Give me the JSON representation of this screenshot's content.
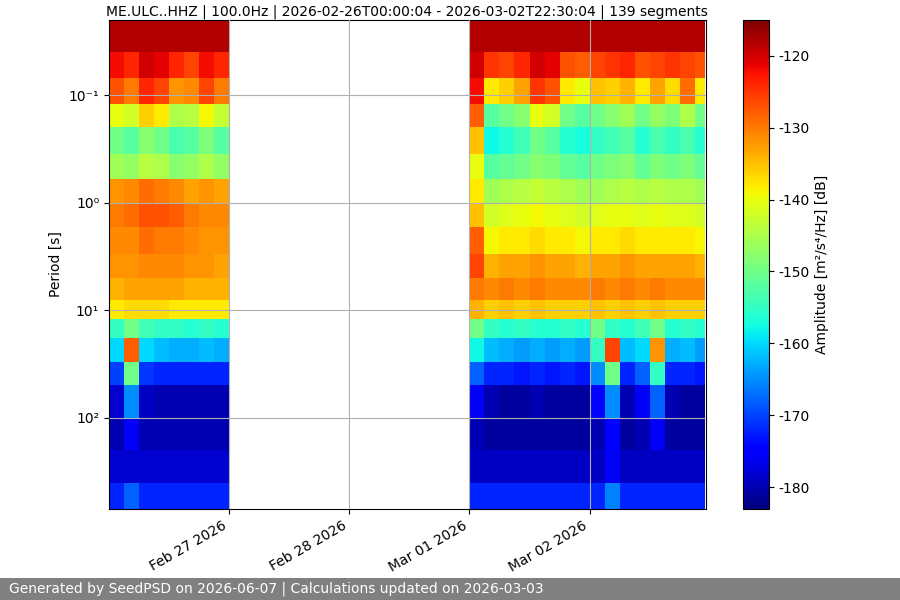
{
  "chart_data": {
    "type": "heatmap",
    "title": "ME.ULC..HHZ | 100.0Hz | 2026-02-26T00:00:04 - 2026-03-02T22:30:04 | 139 segments",
    "y_label": "Period [s]",
    "footer": "Generated by SeedPSD on 2026-06-07 | Calculations updated on 2026-03-03",
    "log": "y",
    "grid": true,
    "xlim": [
      "2026-02-26T00:00",
      "2026-03-02T23:10"
    ],
    "ylim": [
      700,
      0.02
    ],
    "xticks": [
      {
        "value": "2026-02-27T00:00",
        "label": "Feb 27 2026"
      },
      {
        "value": "2026-02-28T00:00",
        "label": "Feb 28 2026"
      },
      {
        "value": "2026-03-01T00:00",
        "label": "Mar 01 2026"
      },
      {
        "value": "2026-03-02T00:00",
        "label": "Mar 02 2026"
      }
    ],
    "yticks": [
      {
        "value": 0.1,
        "label": "10⁻¹"
      },
      {
        "value": 1,
        "label": "10⁰"
      },
      {
        "value": 10,
        "label": "10¹"
      },
      {
        "value": 100,
        "label": "10²"
      }
    ],
    "x_edges": [
      "2026-02-26T00:00",
      "2026-02-26T03:00",
      "2026-02-26T06:00",
      "2026-02-26T09:00",
      "2026-02-26T12:00",
      "2026-02-26T15:00",
      "2026-02-26T18:00",
      "2026-02-26T21:00",
      "2026-02-27T00:00",
      "2026-03-01T00:00",
      "2026-03-01T03:00",
      "2026-03-01T06:00",
      "2026-03-01T09:00",
      "2026-03-01T12:00",
      "2026-03-01T15:00",
      "2026-03-01T18:00",
      "2026-03-01T21:00",
      "2026-03-02T00:00",
      "2026-03-02T03:00",
      "2026-03-02T06:00",
      "2026-03-02T09:00",
      "2026-03-02T12:00",
      "2026-03-02T15:00",
      "2026-03-02T18:00",
      "2026-03-02T21:00",
      "2026-03-02T23:00"
    ],
    "y_edges": [
      0.02,
      0.04,
      0.07,
      0.12,
      0.2,
      0.35,
      0.6,
      1,
      1.7,
      3,
      5,
      8,
      12,
      18,
      30,
      50,
      100,
      200,
      400,
      700
    ],
    "cells": [
      [
        -118,
        -118,
        -118,
        -118,
        -118,
        -118,
        -118,
        -118,
        null,
        -118,
        -118,
        -118,
        -118,
        -118,
        -118,
        -118,
        -118,
        -118,
        -118,
        -118,
        -118,
        -118,
        -118,
        -118,
        -118
      ],
      [
        -122,
        -124,
        -120,
        -121,
        -124,
        -126,
        -122,
        -124,
        null,
        -120,
        -125,
        -126,
        -124,
        -120,
        -121,
        -127,
        -128,
        -126,
        -125,
        -124,
        -127,
        -126,
        -125,
        -126,
        -127
      ],
      [
        -127,
        -130,
        -124,
        -126,
        -132,
        -131,
        -126,
        -130,
        null,
        -122,
        -138,
        -136,
        -133,
        -125,
        -127,
        -138,
        -140,
        -135,
        -136,
        -134,
        -138,
        -133,
        -137,
        -129,
        -138
      ],
      [
        -140,
        -142,
        -136,
        -138,
        -145,
        -144,
        -139,
        -143,
        null,
        -128,
        -152,
        -150,
        -148,
        -140,
        -142,
        -150,
        -152,
        -150,
        -148,
        -146,
        -150,
        -147,
        -149,
        -145,
        -150
      ],
      [
        -150,
        -152,
        -148,
        -150,
        -153,
        -152,
        -149,
        -152,
        null,
        -135,
        -158,
        -156,
        -154,
        -150,
        -152,
        -156,
        -157,
        -155,
        -154,
        -152,
        -156,
        -153,
        -155,
        -153,
        -156
      ],
      [
        -146,
        -147,
        -144,
        -145,
        -148,
        -147,
        -145,
        -147,
        null,
        -140,
        -152,
        -151,
        -150,
        -148,
        -149,
        -151,
        -152,
        -150,
        -149,
        -148,
        -151,
        -149,
        -150,
        -149,
        -151
      ],
      [
        -132,
        -131,
        -129,
        -130,
        -131,
        -133,
        -132,
        -133,
        null,
        -138,
        -146,
        -145,
        -144,
        -143,
        -144,
        -145,
        -146,
        -146,
        -145,
        -144,
        -145,
        -144,
        -145,
        -145,
        -146
      ],
      [
        -130,
        -129,
        -127,
        -127,
        -128,
        -130,
        -131,
        -131,
        null,
        -135,
        -142,
        -141,
        -140,
        -139,
        -140,
        -141,
        -142,
        -141,
        -140,
        -140,
        -141,
        -140,
        -141,
        -141,
        -142
      ],
      [
        -131,
        -131,
        -129,
        -130,
        -130,
        -131,
        -132,
        -132,
        null,
        -128,
        -139,
        -138,
        -138,
        -137,
        -138,
        -138,
        -139,
        -138,
        -138,
        -137,
        -138,
        -138,
        -138,
        -138,
        -139
      ],
      [
        -132,
        -132,
        -131,
        -131,
        -131,
        -132,
        -132,
        -133,
        null,
        -126,
        -134,
        -133,
        -133,
        -132,
        -133,
        -133,
        -134,
        -133,
        -133,
        -132,
        -133,
        -133,
        -133,
        -133,
        -134
      ],
      [
        -134,
        -133,
        -133,
        -133,
        -133,
        -134,
        -134,
        -134,
        null,
        -130,
        -131,
        -130,
        -131,
        -130,
        -131,
        -131,
        -131,
        -130,
        -131,
        -130,
        -131,
        -130,
        -131,
        -131,
        -131
      ],
      [
        -138,
        -137,
        -137,
        -137,
        -138,
        -138,
        -138,
        -138,
        null,
        -134,
        -136,
        -135,
        -136,
        -135,
        -136,
        -136,
        -136,
        -135,
        -136,
        -135,
        -136,
        -135,
        -136,
        -136,
        -136
      ],
      [
        -155,
        -150,
        -154,
        -155,
        -155,
        -156,
        -155,
        -156,
        null,
        -150,
        -155,
        -156,
        -155,
        -156,
        -156,
        -155,
        -156,
        -150,
        -155,
        -156,
        -154,
        -150,
        -156,
        -155,
        -156
      ],
      [
        -160,
        -128,
        -160,
        -162,
        -163,
        -163,
        -162,
        -163,
        null,
        -158,
        -162,
        -163,
        -164,
        -163,
        -164,
        -163,
        -164,
        -155,
        -126,
        -162,
        -160,
        -132,
        -163,
        -162,
        -164
      ],
      [
        -170,
        -150,
        -171,
        -172,
        -172,
        -172,
        -172,
        -172,
        null,
        -168,
        -172,
        -172,
        -173,
        -172,
        -173,
        -172,
        -173,
        -165,
        -150,
        -172,
        -168,
        -155,
        -172,
        -172,
        -173
      ],
      [
        -178,
        -165,
        -179,
        -180,
        -180,
        -180,
        -180,
        -180,
        null,
        -176,
        -180,
        -181,
        -181,
        -180,
        -181,
        -181,
        -181,
        -174,
        -165,
        -180,
        -176,
        -168,
        -180,
        -181,
        -181
      ],
      [
        -180,
        -176,
        -180,
        -180,
        -180,
        -180,
        -180,
        -180,
        null,
        -180,
        -181,
        -181,
        -181,
        -181,
        -181,
        -181,
        -181,
        -180,
        -175,
        -181,
        -180,
        -176,
        -181,
        -181,
        -181
      ],
      [
        -178,
        -178,
        -178,
        -178,
        -178,
        -178,
        -178,
        -178,
        null,
        -179,
        -179,
        -179,
        -179,
        -179,
        -179,
        -179,
        -179,
        -179,
        -176,
        -179,
        -179,
        -179,
        -179,
        -179,
        -179
      ],
      [
        -172,
        -168,
        -172,
        -172,
        -172,
        -172,
        -172,
        -172,
        null,
        -172,
        -172,
        -172,
        -172,
        -172,
        -172,
        -172,
        -172,
        -172,
        -166,
        -172,
        -172,
        -172,
        -172,
        -172,
        -172
      ]
    ],
    "colorbar": {
      "label": "Amplitude [m²/s⁴/Hz] [dB]",
      "range": [
        -183,
        -115
      ],
      "ticks": [
        -180,
        -170,
        -160,
        -150,
        -140,
        -130,
        -120
      ]
    }
  }
}
